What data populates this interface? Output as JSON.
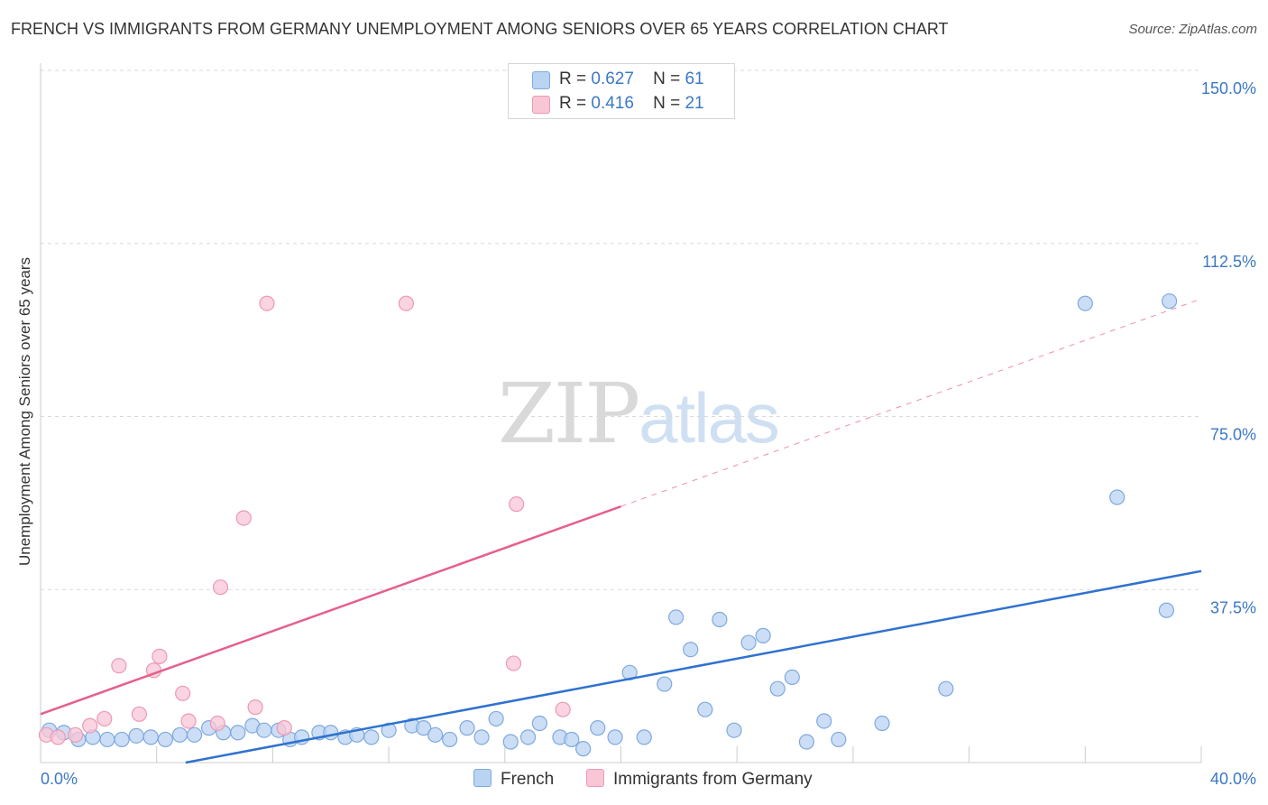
{
  "title": "FRENCH VS IMMIGRANTS FROM GERMANY UNEMPLOYMENT AMONG SENIORS OVER 65 YEARS CORRELATION CHART",
  "source": "Source: ZipAtlas.com",
  "watermark": {
    "zip": "ZIP",
    "atlas": "atlas"
  },
  "legend": {
    "french": {
      "r_label": "R =",
      "r_value": "0.627",
      "n_label": "N =",
      "n_value": "61"
    },
    "germany": {
      "r_label": "R =",
      "r_value": "0.416",
      "n_label": "N =",
      "n_value": "21"
    }
  },
  "bottom_legend": {
    "french": "French",
    "germany": "Immigrants from Germany"
  },
  "colors": {
    "french_fill": "#b9d3f3",
    "french_stroke": "#7fa9de",
    "french_line": "#2f72cf",
    "germany_fill": "#f8c6d5",
    "germany_stroke": "#ec9ab3",
    "germany_line": "#e5608a",
    "grid": "#d9d9d9",
    "tick_label": "#3b78c4"
  },
  "chart_data": {
    "type": "scatter",
    "title": "FRENCH VS IMMIGRANTS FROM GERMANY UNEMPLOYMENT AMONG SENIORS OVER 65 YEARS CORRELATION CHART",
    "xlabel": "",
    "ylabel": "Unemployment Among Seniors over 65 years",
    "xlim": [
      0,
      40
    ],
    "ylim": [
      0,
      150
    ],
    "x_tick_labels": [
      "0.0%",
      "40.0%"
    ],
    "y_ticks": [
      37.5,
      75.0,
      112.5,
      150.0
    ],
    "y_tick_labels": [
      "37.5%",
      "75.0%",
      "112.5%",
      "150.0%"
    ],
    "series": [
      {
        "name": "French",
        "points": [
          [
            0.3,
            7.0
          ],
          [
            0.8,
            6.5
          ],
          [
            1.3,
            5.0
          ],
          [
            1.8,
            5.5
          ],
          [
            2.3,
            5.0
          ],
          [
            2.8,
            5.0
          ],
          [
            3.3,
            5.8
          ],
          [
            3.8,
            5.5
          ],
          [
            4.3,
            5.0
          ],
          [
            4.8,
            6.0
          ],
          [
            5.3,
            6.0
          ],
          [
            5.8,
            7.5
          ],
          [
            6.3,
            6.5
          ],
          [
            6.8,
            6.5
          ],
          [
            7.3,
            8.0
          ],
          [
            7.7,
            7.0
          ],
          [
            8.2,
            7.0
          ],
          [
            8.6,
            5.0
          ],
          [
            9.0,
            5.5
          ],
          [
            9.6,
            6.5
          ],
          [
            10.0,
            6.5
          ],
          [
            10.5,
            5.5
          ],
          [
            10.9,
            6.0
          ],
          [
            11.4,
            5.5
          ],
          [
            12.0,
            7.0
          ],
          [
            12.8,
            8.0
          ],
          [
            13.2,
            7.5
          ],
          [
            13.6,
            6.0
          ],
          [
            14.1,
            5.0
          ],
          [
            14.7,
            7.5
          ],
          [
            15.2,
            5.5
          ],
          [
            15.7,
            9.5
          ],
          [
            16.2,
            4.5
          ],
          [
            16.8,
            5.5
          ],
          [
            17.2,
            8.5
          ],
          [
            17.9,
            5.5
          ],
          [
            18.3,
            5.0
          ],
          [
            18.7,
            3.0
          ],
          [
            19.2,
            7.5
          ],
          [
            19.8,
            5.5
          ],
          [
            20.3,
            19.5
          ],
          [
            20.8,
            5.5
          ],
          [
            21.5,
            17.0
          ],
          [
            21.9,
            31.5
          ],
          [
            22.4,
            24.5
          ],
          [
            22.9,
            11.5
          ],
          [
            23.4,
            31.0
          ],
          [
            23.9,
            7.0
          ],
          [
            24.4,
            26.0
          ],
          [
            24.9,
            27.5
          ],
          [
            25.4,
            16.0
          ],
          [
            25.9,
            18.5
          ],
          [
            26.4,
            4.5
          ],
          [
            27.0,
            9.0
          ],
          [
            27.5,
            5.0
          ],
          [
            29.0,
            8.5
          ],
          [
            31.2,
            16.0
          ],
          [
            36.0,
            99.5
          ],
          [
            37.1,
            57.5
          ],
          [
            38.8,
            33.0
          ],
          [
            38.9,
            100.0
          ]
        ]
      },
      {
        "name": "Immigrants from Germany",
        "points": [
          [
            0.2,
            6.0
          ],
          [
            0.6,
            5.5
          ],
          [
            1.2,
            6.0
          ],
          [
            1.7,
            8.0
          ],
          [
            2.2,
            9.5
          ],
          [
            2.7,
            21.0
          ],
          [
            3.4,
            10.5
          ],
          [
            3.9,
            20.0
          ],
          [
            4.1,
            23.0
          ],
          [
            4.9,
            15.0
          ],
          [
            5.1,
            9.0
          ],
          [
            6.1,
            8.5
          ],
          [
            7.0,
            53.0
          ],
          [
            6.2,
            38.0
          ],
          [
            7.4,
            12.0
          ],
          [
            8.4,
            7.5
          ],
          [
            7.8,
            99.5
          ],
          [
            12.6,
            99.5
          ],
          [
            16.4,
            56.0
          ],
          [
            16.3,
            21.5
          ],
          [
            18.0,
            11.5
          ]
        ]
      }
    ],
    "trend_lines": [
      {
        "series": "French",
        "from": [
          5.0,
          0.0
        ],
        "to": [
          40.0,
          41.5
        ],
        "style": "solid"
      },
      {
        "series": "Immigrants from Germany",
        "from": [
          0.0,
          10.5
        ],
        "to": [
          20.0,
          55.5
        ],
        "style": "solid"
      },
      {
        "series": "Immigrants from Germany",
        "from": [
          20.0,
          55.5
        ],
        "to": [
          40.0,
          100.5
        ],
        "style": "dashed"
      }
    ]
  }
}
